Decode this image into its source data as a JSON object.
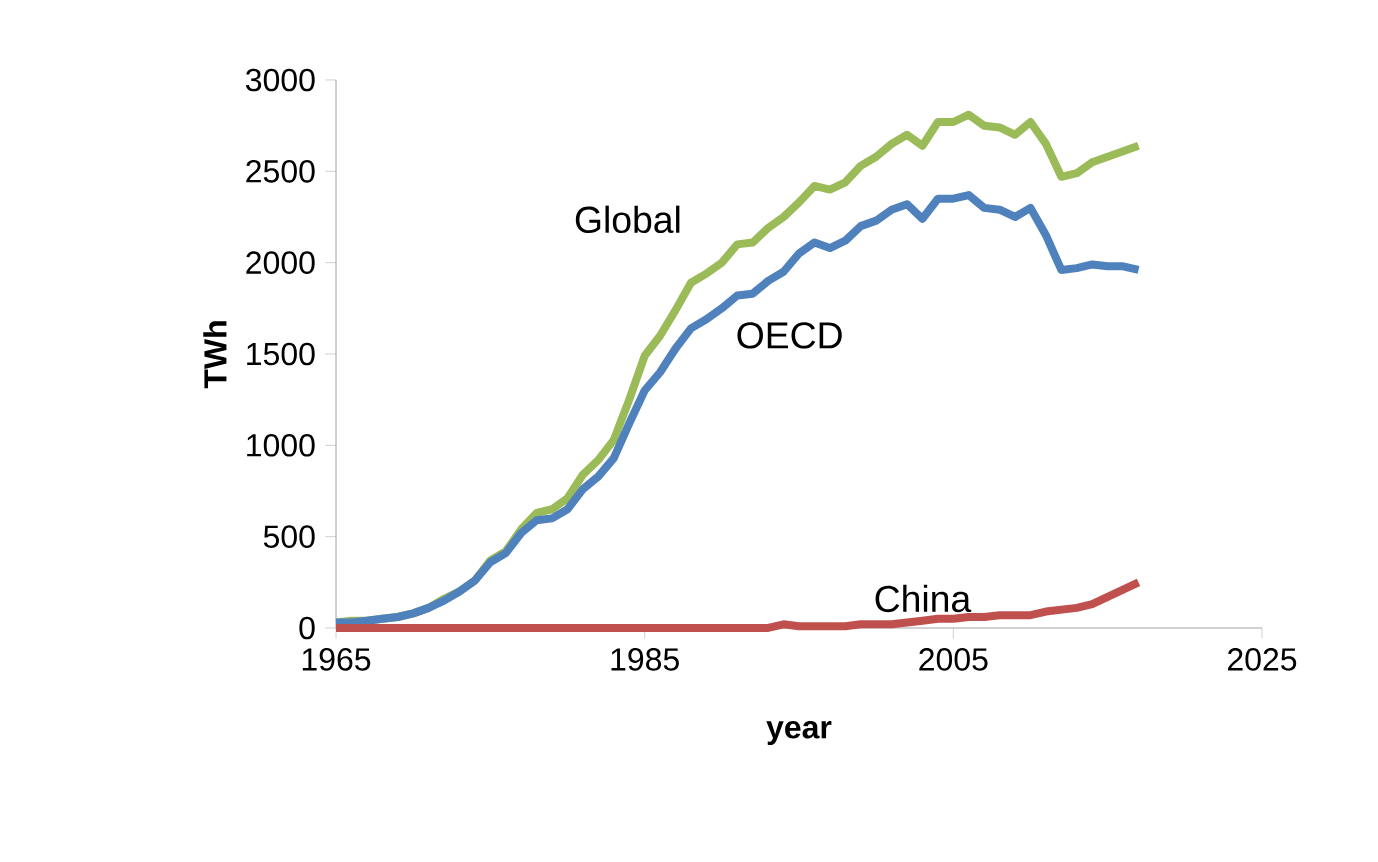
{
  "chart_data": {
    "type": "line",
    "xlabel": "year",
    "ylabel": "TWh",
    "x": [
      1965,
      1966,
      1967,
      1968,
      1969,
      1970,
      1971,
      1972,
      1973,
      1974,
      1975,
      1976,
      1977,
      1978,
      1979,
      1980,
      1981,
      1982,
      1983,
      1984,
      1985,
      1986,
      1987,
      1988,
      1989,
      1990,
      1991,
      1992,
      1993,
      1994,
      1995,
      1996,
      1997,
      1998,
      1999,
      2000,
      2001,
      2002,
      2003,
      2004,
      2005,
      2006,
      2007,
      2008,
      2009,
      2010,
      2011,
      2012,
      2013,
      2014,
      2015,
      2016,
      2017
    ],
    "series": [
      {
        "name": "Global",
        "color": "#9bbb59",
        "values": [
          30,
          40,
          40,
          50,
          60,
          80,
          110,
          160,
          200,
          260,
          370,
          420,
          540,
          630,
          650,
          710,
          840,
          920,
          1030,
          1250,
          1490,
          1600,
          1740,
          1890,
          1940,
          2000,
          2100,
          2110,
          2190,
          2250,
          2330,
          2420,
          2400,
          2440,
          2530,
          2580,
          2650,
          2700,
          2640,
          2770,
          2770,
          2810,
          2750,
          2740,
          2700,
          2770,
          2650,
          2470,
          2490,
          2550,
          2580,
          2610,
          2640
        ]
      },
      {
        "name": "OECD",
        "color": "#4f81bd",
        "values": [
          30,
          30,
          40,
          50,
          60,
          80,
          110,
          150,
          200,
          260,
          360,
          410,
          520,
          590,
          600,
          650,
          760,
          830,
          930,
          1120,
          1300,
          1400,
          1530,
          1640,
          1690,
          1750,
          1820,
          1830,
          1900,
          1950,
          2050,
          2110,
          2080,
          2120,
          2200,
          2230,
          2290,
          2320,
          2240,
          2350,
          2350,
          2370,
          2300,
          2290,
          2250,
          2300,
          2150,
          1960,
          1970,
          1990,
          1980,
          1980,
          1960
        ]
      },
      {
        "name": "China",
        "color": "#c0504d",
        "values": [
          0,
          0,
          0,
          0,
          0,
          0,
          0,
          0,
          0,
          0,
          0,
          0,
          0,
          0,
          0,
          0,
          0,
          0,
          0,
          0,
          0,
          0,
          0,
          0,
          0,
          0,
          0,
          0,
          0,
          20,
          10,
          10,
          10,
          10,
          20,
          20,
          20,
          30,
          40,
          50,
          50,
          60,
          60,
          70,
          70,
          70,
          90,
          100,
          110,
          130,
          170,
          210,
          250
        ]
      }
    ],
    "xlim": [
      1965,
      2025
    ],
    "xticks": [
      1965,
      1985,
      2005,
      2025
    ],
    "ylim": [
      0,
      3000
    ],
    "yticks": [
      0,
      500,
      1000,
      1500,
      2000,
      2500,
      3000
    ],
    "grid": false,
    "legend": false,
    "marker": "none",
    "line_style": "solid"
  }
}
